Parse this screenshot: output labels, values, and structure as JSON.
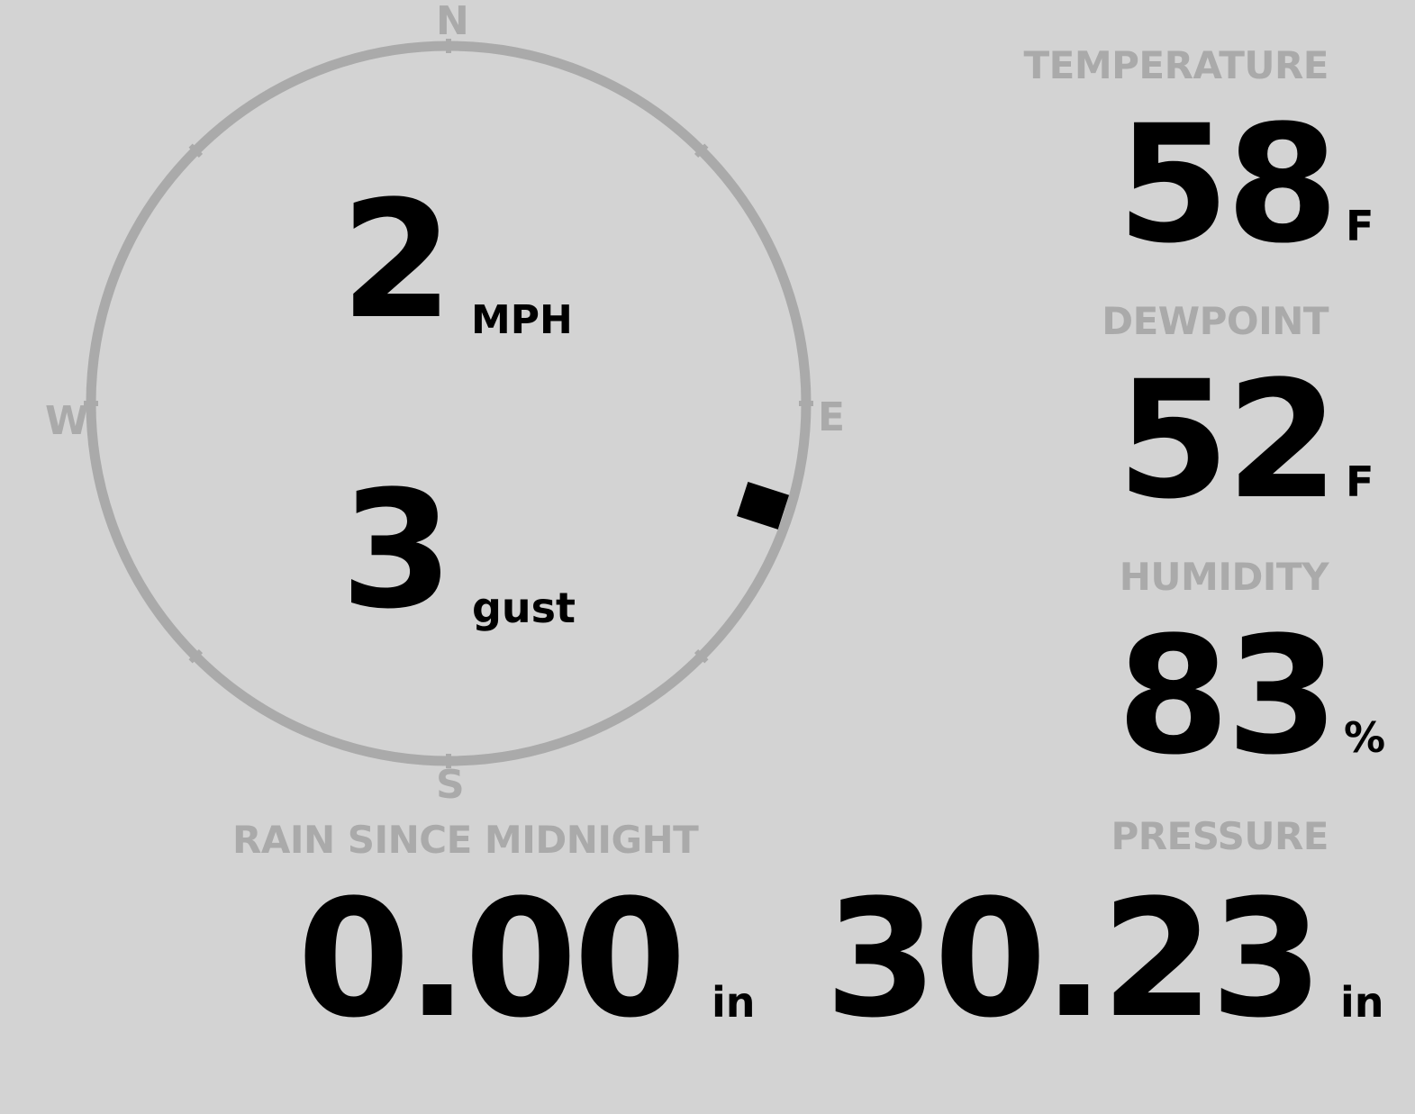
{
  "wind": {
    "speed": "2",
    "speed_unit": "MPH",
    "gust": "3",
    "gust_label": "gust",
    "direction_degrees": 108,
    "cardinals": {
      "n": "N",
      "e": "E",
      "s": "S",
      "w": "W"
    }
  },
  "temperature": {
    "label": "TEMPERATURE",
    "value": "58",
    "unit": "F"
  },
  "dewpoint": {
    "label": "DEWPOINT",
    "value": "52",
    "unit": "F"
  },
  "humidity": {
    "label": "HUMIDITY",
    "value": "83",
    "unit": "%"
  },
  "rain": {
    "label": "RAIN SINCE MIDNIGHT",
    "value": "0.00",
    "unit": "in"
  },
  "pressure": {
    "label": "PRESSURE",
    "value": "30.23",
    "unit": "in"
  },
  "colors": {
    "background": "#d3d3d3",
    "muted": "#aaaaaa",
    "text": "#000000"
  }
}
